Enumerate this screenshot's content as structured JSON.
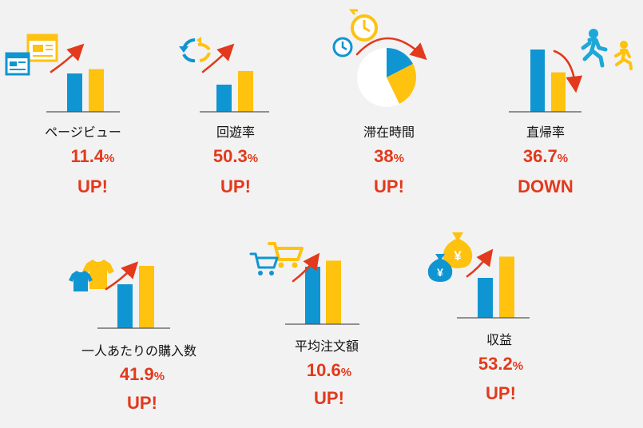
{
  "colors": {
    "before": "#0f95d2",
    "after": "#fec20f",
    "accent": "#e3391c",
    "baseline": "#555555"
  },
  "chart_data": {
    "type": "bar",
    "series": [
      {
        "values": [
          1.0,
          1.114
        ]
      },
      {
        "values": [
          1.0,
          1.503
        ]
      },
      {
        "values": [
          1.0,
          1.38
        ]
      },
      {
        "values": [
          1.0,
          0.633
        ]
      },
      {
        "values": [
          1.0,
          1.419
        ]
      },
      {
        "values": [
          1.0,
          1.106
        ]
      },
      {
        "values": [
          1.0,
          1.532
        ]
      }
    ]
  },
  "metrics": [
    {
      "label": "ページビュー",
      "value": "11.4",
      "unit": "%",
      "status": "UP!",
      "icon": "browser-windows-icon"
    },
    {
      "label": "回遊率",
      "value": "50.3",
      "unit": "%",
      "status": "UP!",
      "icon": "circular-arrows-icon"
    },
    {
      "label": "滞在時間",
      "value": "38",
      "unit": "%",
      "status": "UP!",
      "icon": "clock-pie-icon"
    },
    {
      "label": "直帰率",
      "value": "36.7",
      "unit": "%",
      "status": "DOWN",
      "icon": "running-person-icon"
    },
    {
      "label": "一人あたりの購入数",
      "value": "41.9",
      "unit": "%",
      "status": "UP!",
      "icon": "shirts-icon"
    },
    {
      "label": "平均注文額",
      "value": "10.6",
      "unit": "%",
      "status": "UP!",
      "icon": "shopping-cart-icon"
    },
    {
      "label": "収益",
      "value": "53.2",
      "unit": "%",
      "status": "UP!",
      "icon": "money-bag-icon"
    }
  ],
  "icon_text": {
    "yen": "¥"
  }
}
